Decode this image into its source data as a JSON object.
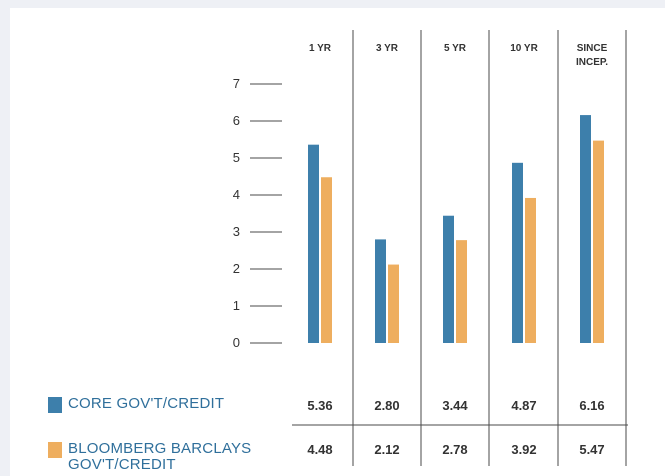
{
  "chart_data": {
    "type": "bar",
    "categories": [
      "1 YR",
      "3 YR",
      "5 YR",
      "10 YR",
      "SINCE INCEP."
    ],
    "category_lines": [
      [
        "1 YR"
      ],
      [
        "3 YR"
      ],
      [
        "5 YR"
      ],
      [
        "10 YR"
      ],
      [
        "SINCE",
        "INCEP."
      ]
    ],
    "y_ticks": [
      "0",
      "1",
      "2",
      "3",
      "4",
      "5",
      "6",
      "7"
    ],
    "ylim": [
      0,
      7
    ],
    "grid": false,
    "legend_placement": "bottom-left",
    "series": [
      {
        "name": "CORE GOV'T/CREDIT",
        "label_lines": [
          "CORE GOV'T/CREDIT"
        ],
        "values": [
          5.36,
          2.8,
          3.44,
          4.87,
          6.16
        ],
        "value_labels": [
          "5.36",
          "2.80",
          "3.44",
          "4.87",
          "6.16"
        ],
        "color": "#3d7fab"
      },
      {
        "name": "BLOOMBERG BARCLAYS GOV'T/CREDIT",
        "label_lines": [
          "BLOOMBERG BARCLAYS",
          "GOV'T/CREDIT"
        ],
        "values": [
          4.48,
          2.12,
          2.78,
          3.92,
          5.47
        ],
        "value_labels": [
          "4.48",
          "2.12",
          "2.78",
          "3.92",
          "5.47"
        ],
        "color": "#eeae5f"
      }
    ]
  }
}
